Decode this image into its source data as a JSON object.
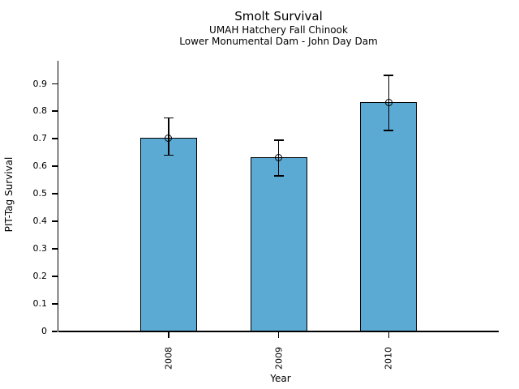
{
  "page": {
    "background_color": "#ffffff",
    "text_color": "#000000"
  },
  "chart_data": {
    "type": "bar",
    "title": "Smolt Survival",
    "subtitle1": "UMAH Hatchery Fall Chinook",
    "subtitle2": "Lower Monumental Dam - John Day Dam",
    "xlabel": "Year",
    "ylabel": "PIT-Tag Survival",
    "categories": [
      "2008",
      "2009",
      "2010"
    ],
    "values": [
      0.7,
      0.63,
      0.83
    ],
    "error_low": [
      0.635,
      0.56,
      0.725
    ],
    "error_high": [
      0.775,
      0.695,
      0.93
    ],
    "ytick_labels": [
      "0",
      "0.1",
      "0.2",
      "0.3",
      "0.4",
      "0.5",
      "0.6",
      "0.7",
      "0.8",
      "0.9"
    ],
    "ytick_values": [
      0,
      0.1,
      0.2,
      0.3,
      0.4,
      0.5,
      0.6,
      0.7,
      0.8,
      0.9
    ],
    "ylim": [
      0,
      0.98
    ],
    "grid": false,
    "legend": "none",
    "marker": "open-circle",
    "bar_color": "#5BAAD3",
    "bar_edge_color": "#000000",
    "error_bar_color": "#000000"
  }
}
